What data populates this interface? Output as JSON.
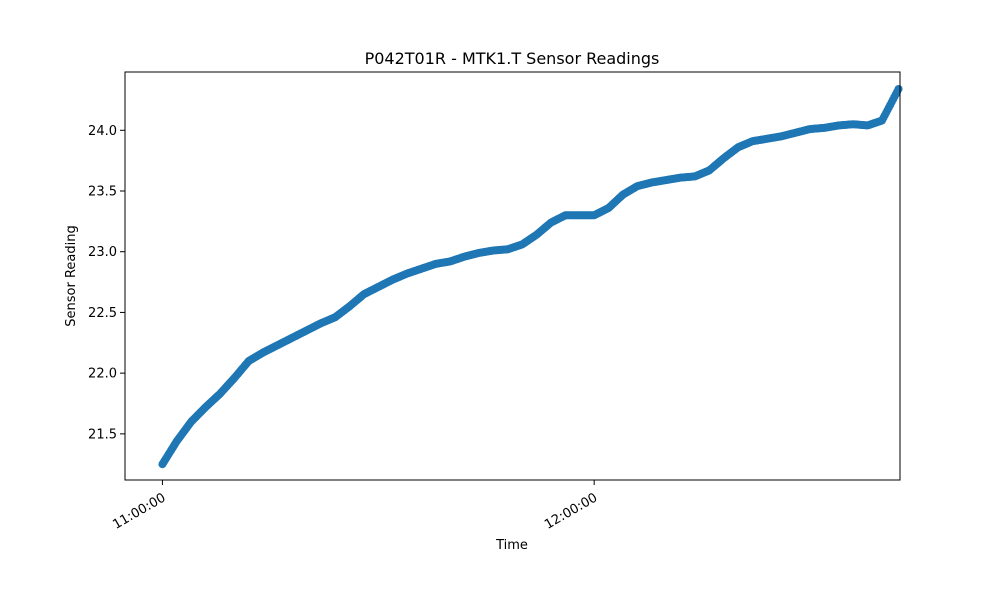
{
  "chart_data": {
    "type": "scatter",
    "title": "P042T01R - MTK1.T Sensor Readings",
    "xlabel": "Time",
    "ylabel": "Sensor Reading",
    "x_tick_labels": [
      "11:00:00",
      "12:00:00"
    ],
    "x_tick_values": [
      0,
      60
    ],
    "y_tick_labels": [
      "21.5",
      "22.0",
      "22.5",
      "23.0",
      "23.5",
      "24.0"
    ],
    "y_tick_values": [
      21.5,
      22.0,
      22.5,
      23.0,
      23.5,
      24.0
    ],
    "xlim": [
      -5.2,
      102.5
    ],
    "ylim": [
      21.12,
      24.48
    ],
    "grid": false,
    "marker_color": "#1f77b4",
    "series": [
      {
        "x": [
          0,
          2,
          4,
          6,
          8,
          10,
          12,
          14,
          16,
          18,
          20,
          22,
          24,
          26,
          28,
          30,
          32,
          34,
          36,
          38,
          40,
          42,
          44,
          46,
          48,
          50,
          52,
          54,
          56,
          58,
          60,
          62,
          64,
          66,
          68,
          70,
          72,
          74,
          76,
          78,
          80,
          82,
          84,
          86,
          88,
          90,
          92,
          94,
          96,
          98,
          100,
          102.3
        ],
        "y": [
          21.25,
          21.44,
          21.6,
          21.72,
          21.83,
          21.96,
          22.1,
          22.17,
          22.23,
          22.29,
          22.35,
          22.41,
          22.46,
          22.55,
          22.65,
          22.71,
          22.77,
          22.82,
          22.86,
          22.9,
          22.92,
          22.96,
          22.99,
          23.01,
          23.02,
          23.06,
          23.14,
          23.24,
          23.3,
          23.3,
          23.3,
          23.36,
          23.47,
          23.54,
          23.57,
          23.59,
          23.61,
          23.62,
          23.67,
          23.77,
          23.86,
          23.91,
          23.93,
          23.95,
          23.98,
          24.01,
          24.02,
          24.04,
          24.05,
          24.04,
          24.08,
          24.34
        ]
      }
    ]
  }
}
